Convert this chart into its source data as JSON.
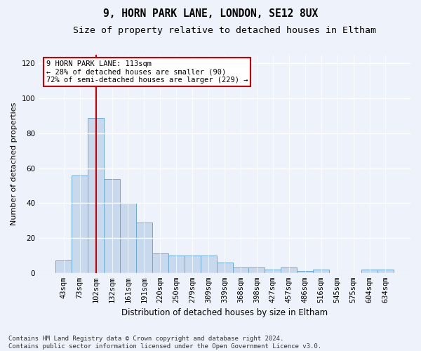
{
  "title1": "9, HORN PARK LANE, LONDON, SE12 8UX",
  "title2": "Size of property relative to detached houses in Eltham",
  "xlabel": "Distribution of detached houses by size in Eltham",
  "ylabel": "Number of detached properties",
  "categories": [
    "43sqm",
    "73sqm",
    "102sqm",
    "132sqm",
    "161sqm",
    "191sqm",
    "220sqm",
    "250sqm",
    "279sqm",
    "309sqm",
    "339sqm",
    "368sqm",
    "398sqm",
    "427sqm",
    "457sqm",
    "486sqm",
    "516sqm",
    "545sqm",
    "575sqm",
    "604sqm",
    "634sqm"
  ],
  "values": [
    7,
    56,
    89,
    54,
    40,
    29,
    11,
    10,
    10,
    10,
    6,
    3,
    3,
    2,
    3,
    1,
    2,
    0,
    0,
    2,
    2
  ],
  "bar_color": "#c8d9ed",
  "bar_edge_color": "#6aaad4",
  "bar_edge_width": 0.7,
  "property_line_index": 2,
  "property_line_color": "#cc0000",
  "ylim": [
    0,
    125
  ],
  "yticks": [
    0,
    20,
    40,
    60,
    80,
    100,
    120
  ],
  "annotation_text": "9 HORN PARK LANE: 113sqm\n← 28% of detached houses are smaller (90)\n72% of semi-detached houses are larger (229) →",
  "annotation_box_color": "#ffffff",
  "annotation_border_color": "#cc0000",
  "footer_text": "Contains HM Land Registry data © Crown copyright and database right 2024.\nContains public sector information licensed under the Open Government Licence v3.0.",
  "background_color": "#eef2fa",
  "plot_bg_color": "#eef2fa",
  "grid_color": "#ffffff",
  "title1_fontsize": 10.5,
  "title2_fontsize": 9.5,
  "xlabel_fontsize": 8.5,
  "ylabel_fontsize": 8,
  "tick_fontsize": 7.5,
  "annotation_fontsize": 7.5,
  "footer_fontsize": 6.5
}
